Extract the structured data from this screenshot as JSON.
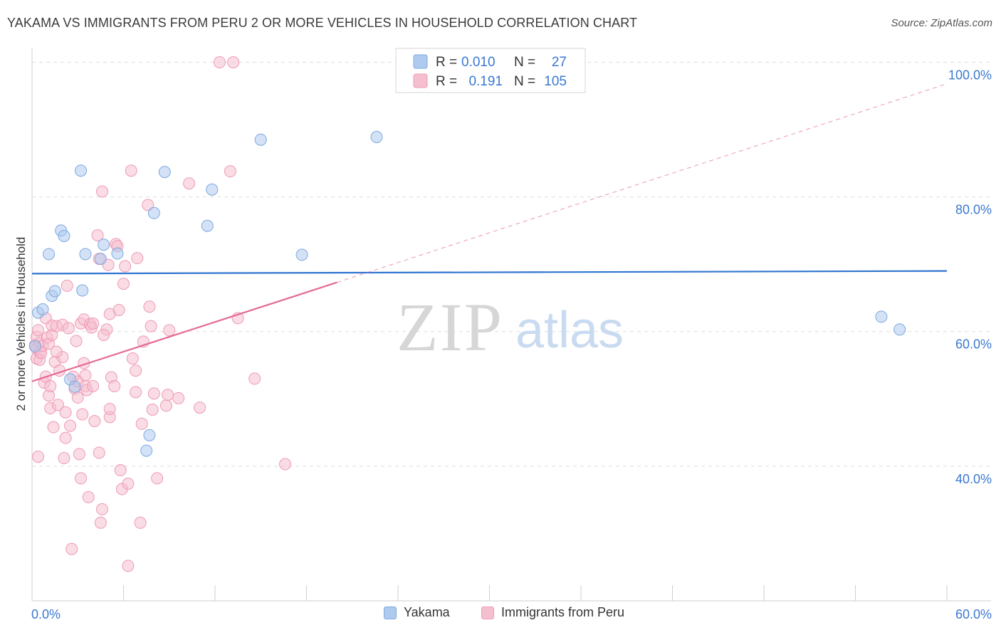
{
  "title": "YAKAMA VS IMMIGRANTS FROM PERU 2 OR MORE VEHICLES IN HOUSEHOLD CORRELATION CHART",
  "source": "Source: ZipAtlas.com",
  "watermark": {
    "zip": "ZIP",
    "atlas": "atlas"
  },
  "colors": {
    "blue_fill": "#aecbef",
    "blue_stroke": "#7ea8df",
    "blue_line": "#2f74d0",
    "pink_fill": "#f6bfd0",
    "pink_stroke": "#ee9ab5",
    "pink_line": "#e46a93",
    "axis_label": "#3a78d1",
    "grid": "#dddddd"
  },
  "stats_legend": {
    "rows": [
      {
        "series": "Yakama",
        "r_label": "R =",
        "r_value": "0.010",
        "n_label": "N =",
        "n_value": "27"
      },
      {
        "series": "Immigrants from Peru",
        "r_label": "R =",
        "r_value": "0.191",
        "n_label": "N =",
        "n_value": "105"
      }
    ]
  },
  "chart_data": {
    "type": "scatter",
    "title": "YAKAMA VS IMMIGRANTS FROM PERU 2 OR MORE VEHICLES IN HOUSEHOLD CORRELATION CHART",
    "xlabel": "",
    "ylabel": "2 or more Vehicles in Household",
    "xlim": [
      0,
      60
    ],
    "ylim": [
      20,
      101
    ],
    "x_tick_labels": [
      {
        "value": 0,
        "label": "0.0%"
      },
      {
        "value": 60,
        "label": "60.0%"
      }
    ],
    "y_tick_labels": [
      {
        "value": 40,
        "label": "40.0%"
      },
      {
        "value": 60,
        "label": "60.0%"
      },
      {
        "value": 80,
        "label": "80.0%"
      },
      {
        "value": 100,
        "label": "100.0%"
      }
    ],
    "grid_y": [
      40,
      60,
      80,
      100
    ],
    "series": [
      {
        "name": "Yakama",
        "trend": {
          "x0": 0,
          "y0": 68.6,
          "x1": 60,
          "y1": 69.0
        },
        "points": [
          [
            0.2,
            57.8
          ],
          [
            0.4,
            62.8
          ],
          [
            0.7,
            63.3
          ],
          [
            1.1,
            71.5
          ],
          [
            1.3,
            65.3
          ],
          [
            1.5,
            66.0
          ],
          [
            1.9,
            75.0
          ],
          [
            2.1,
            74.2
          ],
          [
            2.5,
            52.9
          ],
          [
            2.8,
            51.8
          ],
          [
            3.2,
            83.9
          ],
          [
            3.3,
            66.1
          ],
          [
            3.5,
            71.5
          ],
          [
            4.5,
            70.8
          ],
          [
            4.7,
            72.9
          ],
          [
            5.6,
            71.6
          ],
          [
            7.5,
            42.3
          ],
          [
            7.7,
            44.6
          ],
          [
            8.0,
            77.6
          ],
          [
            8.7,
            83.7
          ],
          [
            11.5,
            75.7
          ],
          [
            11.8,
            81.1
          ],
          [
            15.0,
            88.5
          ],
          [
            17.7,
            71.4
          ],
          [
            22.6,
            88.9
          ],
          [
            55.7,
            62.2
          ],
          [
            56.9,
            60.3
          ]
        ]
      },
      {
        "name": "Immigrants from Peru",
        "trend": {
          "x0": 0,
          "y0": 52.6,
          "x1": 20.0,
          "y1": 67.3
        },
        "trend_dashed": {
          "x0": 20.0,
          "y0": 67.3,
          "x1": 60,
          "y1": 96.8
        },
        "points": [
          [
            0.2,
            58.0
          ],
          [
            0.3,
            56.0
          ],
          [
            0.3,
            57.5
          ],
          [
            0.3,
            59.2
          ],
          [
            0.4,
            41.4
          ],
          [
            0.4,
            60.2
          ],
          [
            0.5,
            58.3
          ],
          [
            0.5,
            57.0
          ],
          [
            0.5,
            55.8
          ],
          [
            0.6,
            56.8
          ],
          [
            0.7,
            57.9
          ],
          [
            0.8,
            52.4
          ],
          [
            0.9,
            53.3
          ],
          [
            1.0,
            59.1
          ],
          [
            1.1,
            58.2
          ],
          [
            1.1,
            50.5
          ],
          [
            1.2,
            48.6
          ],
          [
            1.2,
            51.9
          ],
          [
            1.3,
            59.5
          ],
          [
            1.3,
            60.9
          ],
          [
            1.4,
            45.8
          ],
          [
            1.5,
            55.5
          ],
          [
            1.6,
            60.8
          ],
          [
            1.7,
            49.1
          ],
          [
            1.8,
            54.2
          ],
          [
            2.0,
            56.2
          ],
          [
            2.0,
            61.0
          ],
          [
            2.1,
            41.2
          ],
          [
            2.2,
            48.0
          ],
          [
            2.3,
            66.8
          ],
          [
            2.4,
            60.5
          ],
          [
            2.5,
            46.0
          ],
          [
            2.6,
            27.7
          ],
          [
            2.8,
            51.5
          ],
          [
            2.9,
            58.6
          ],
          [
            3.0,
            50.2
          ],
          [
            3.0,
            52.6
          ],
          [
            3.1,
            41.8
          ],
          [
            3.2,
            38.2
          ],
          [
            3.2,
            61.2
          ],
          [
            3.3,
            47.7
          ],
          [
            3.4,
            61.8
          ],
          [
            3.4,
            55.3
          ],
          [
            3.5,
            53.5
          ],
          [
            3.5,
            51.9
          ],
          [
            3.6,
            51.3
          ],
          [
            3.7,
            35.4
          ],
          [
            3.8,
            61.1
          ],
          [
            3.9,
            60.6
          ],
          [
            4.0,
            61.2
          ],
          [
            4.0,
            51.9
          ],
          [
            4.1,
            46.7
          ],
          [
            4.3,
            74.3
          ],
          [
            4.4,
            70.8
          ],
          [
            4.4,
            42.0
          ],
          [
            4.5,
            31.6
          ],
          [
            4.6,
            80.8
          ],
          [
            4.6,
            33.6
          ],
          [
            4.9,
            60.3
          ],
          [
            5.0,
            69.9
          ],
          [
            5.1,
            47.3
          ],
          [
            5.1,
            62.6
          ],
          [
            5.1,
            48.5
          ],
          [
            5.2,
            53.2
          ],
          [
            5.4,
            51.9
          ],
          [
            5.5,
            73.0
          ],
          [
            5.6,
            72.7
          ],
          [
            5.7,
            63.2
          ],
          [
            5.8,
            39.4
          ],
          [
            5.9,
            36.6
          ],
          [
            6.0,
            67.1
          ],
          [
            6.1,
            69.7
          ],
          [
            6.3,
            37.4
          ],
          [
            6.3,
            25.2
          ],
          [
            6.5,
            83.9
          ],
          [
            6.8,
            54.2
          ],
          [
            6.8,
            51.0
          ],
          [
            6.9,
            70.9
          ],
          [
            7.1,
            31.6
          ],
          [
            7.2,
            46.3
          ],
          [
            7.6,
            78.8
          ],
          [
            7.7,
            63.7
          ],
          [
            7.8,
            60.8
          ],
          [
            7.9,
            48.4
          ],
          [
            8.0,
            50.8
          ],
          [
            8.2,
            38.2
          ],
          [
            8.8,
            49.0
          ],
          [
            8.9,
            50.6
          ],
          [
            9.0,
            60.2
          ],
          [
            9.6,
            50.1
          ],
          [
            10.3,
            82.0
          ],
          [
            11.0,
            48.7
          ],
          [
            12.3,
            100.0
          ],
          [
            13.0,
            83.8
          ],
          [
            13.2,
            100.0
          ],
          [
            13.5,
            62.0
          ],
          [
            14.6,
            53.0
          ],
          [
            16.6,
            40.3
          ],
          [
            1.6,
            57.0
          ],
          [
            2.7,
            53.3
          ],
          [
            0.9,
            62.0
          ],
          [
            4.7,
            59.5
          ],
          [
            6.6,
            56.0
          ],
          [
            7.3,
            58.5
          ],
          [
            2.2,
            44.2
          ]
        ]
      }
    ]
  }
}
